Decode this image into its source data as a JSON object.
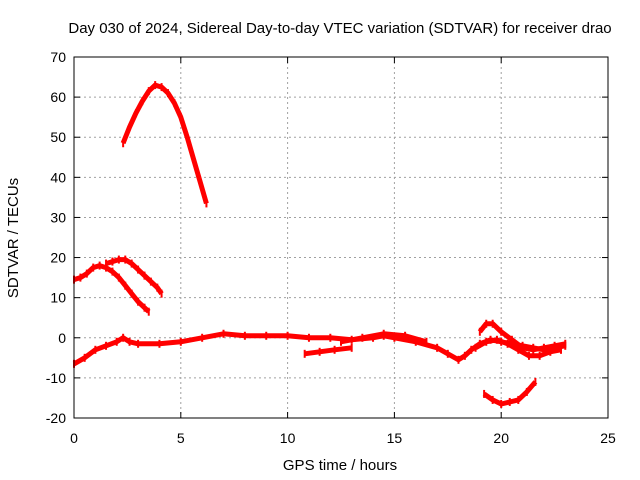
{
  "chart_data": {
    "type": "line",
    "title": "Day 030 of 2024, Sidereal Day-to-day VTEC variation (SDTVAR) for receiver drao",
    "xlabel": "GPS time / hours",
    "ylabel": "SDTVAR / TECUs",
    "xlim": [
      0,
      25
    ],
    "ylim": [
      -20,
      70
    ],
    "xticks": [
      0,
      5,
      10,
      15,
      20,
      25
    ],
    "yticks": [
      -20,
      -10,
      0,
      10,
      20,
      30,
      40,
      50,
      60,
      70
    ],
    "grid": true,
    "legend": "none",
    "series_color": "#ff0000",
    "series": [
      {
        "name": "arc-high-peak",
        "x": [
          2.3,
          2.6,
          2.9,
          3.2,
          3.5,
          3.8,
          4.1,
          4.4,
          4.7,
          5.0,
          5.3,
          5.6,
          5.9,
          6.2
        ],
        "y": [
          48.5,
          52.5,
          56,
          59,
          61.5,
          63,
          62.5,
          61,
          58.5,
          55,
          50,
          44.5,
          39,
          33.5
        ]
      },
      {
        "name": "arc-upper",
        "x": [
          1.5,
          1.8,
          2.1,
          2.4,
          2.7,
          3.0,
          3.3,
          3.6,
          3.9,
          4.1
        ],
        "y": [
          18.5,
          19,
          19.5,
          19.5,
          18.5,
          17,
          15.5,
          14,
          12.5,
          11
        ]
      },
      {
        "name": "arc-lower",
        "x": [
          0,
          0.3,
          0.6,
          0.9,
          1.2,
          1.5,
          1.8,
          2.1,
          2.4,
          2.7,
          3.0,
          3.3,
          3.5
        ],
        "y": [
          14.5,
          15,
          16,
          17.5,
          18,
          17.5,
          16.5,
          15,
          13,
          11,
          9,
          7.5,
          6.5
        ]
      },
      {
        "name": "main-baseline",
        "x": [
          0,
          0.5,
          1.0,
          1.5,
          2.0,
          2.3,
          2.6,
          3,
          4,
          5,
          6,
          7,
          8,
          9,
          10,
          11,
          12,
          13,
          14,
          14.5,
          15,
          16,
          17,
          17.5,
          18,
          18.3,
          18.6,
          19,
          19.5,
          20,
          20.5,
          21,
          21.5,
          22,
          22.5,
          23
        ],
        "y": [
          -6.5,
          -5,
          -3,
          -2,
          -1,
          0,
          -1,
          -1.5,
          -1.5,
          -1,
          0,
          1,
          0.5,
          0.5,
          0.5,
          0,
          0,
          -0.5,
          0,
          0.5,
          0,
          -1,
          -2.5,
          -4,
          -5.5,
          -4.5,
          -3,
          -1.5,
          -0.5,
          -1,
          -1.5,
          -2,
          -2.5,
          -3,
          -2.5,
          -2
        ]
      },
      {
        "name": "side-arc-a",
        "x": [
          10.8,
          11.5,
          12.2,
          13.0
        ],
        "y": [
          -4,
          -3.5,
          -3,
          -2.5
        ]
      },
      {
        "name": "side-arc-b",
        "x": [
          12.5,
          13.5,
          14.5,
          15.5,
          16.5
        ],
        "y": [
          -1,
          0,
          1,
          0.5,
          -1
        ]
      },
      {
        "name": "side-arc-c",
        "x": [
          19.0,
          19.3,
          19.6,
          20.0,
          20.5,
          21.0,
          21.5,
          22.0,
          22.5,
          23.0
        ],
        "y": [
          1.5,
          3.5,
          3.5,
          1.5,
          -0.5,
          -2.5,
          -3,
          -2.5,
          -2,
          -1.5
        ]
      },
      {
        "name": "side-arc-d",
        "x": [
          18.8,
          19.3,
          19.8,
          20.3,
          20.8,
          21.3,
          21.8,
          22.3,
          22.8
        ],
        "y": [
          -2.5,
          -1,
          -0.5,
          -1.5,
          -3,
          -4.5,
          -4.5,
          -3.5,
          -3
        ]
      },
      {
        "name": "arc-low",
        "x": [
          19.2,
          19.6,
          20.0,
          20.4,
          20.8,
          21.2,
          21.6
        ],
        "y": [
          -14,
          -15.5,
          -16.5,
          -16,
          -15.5,
          -13.5,
          -11
        ]
      }
    ]
  }
}
